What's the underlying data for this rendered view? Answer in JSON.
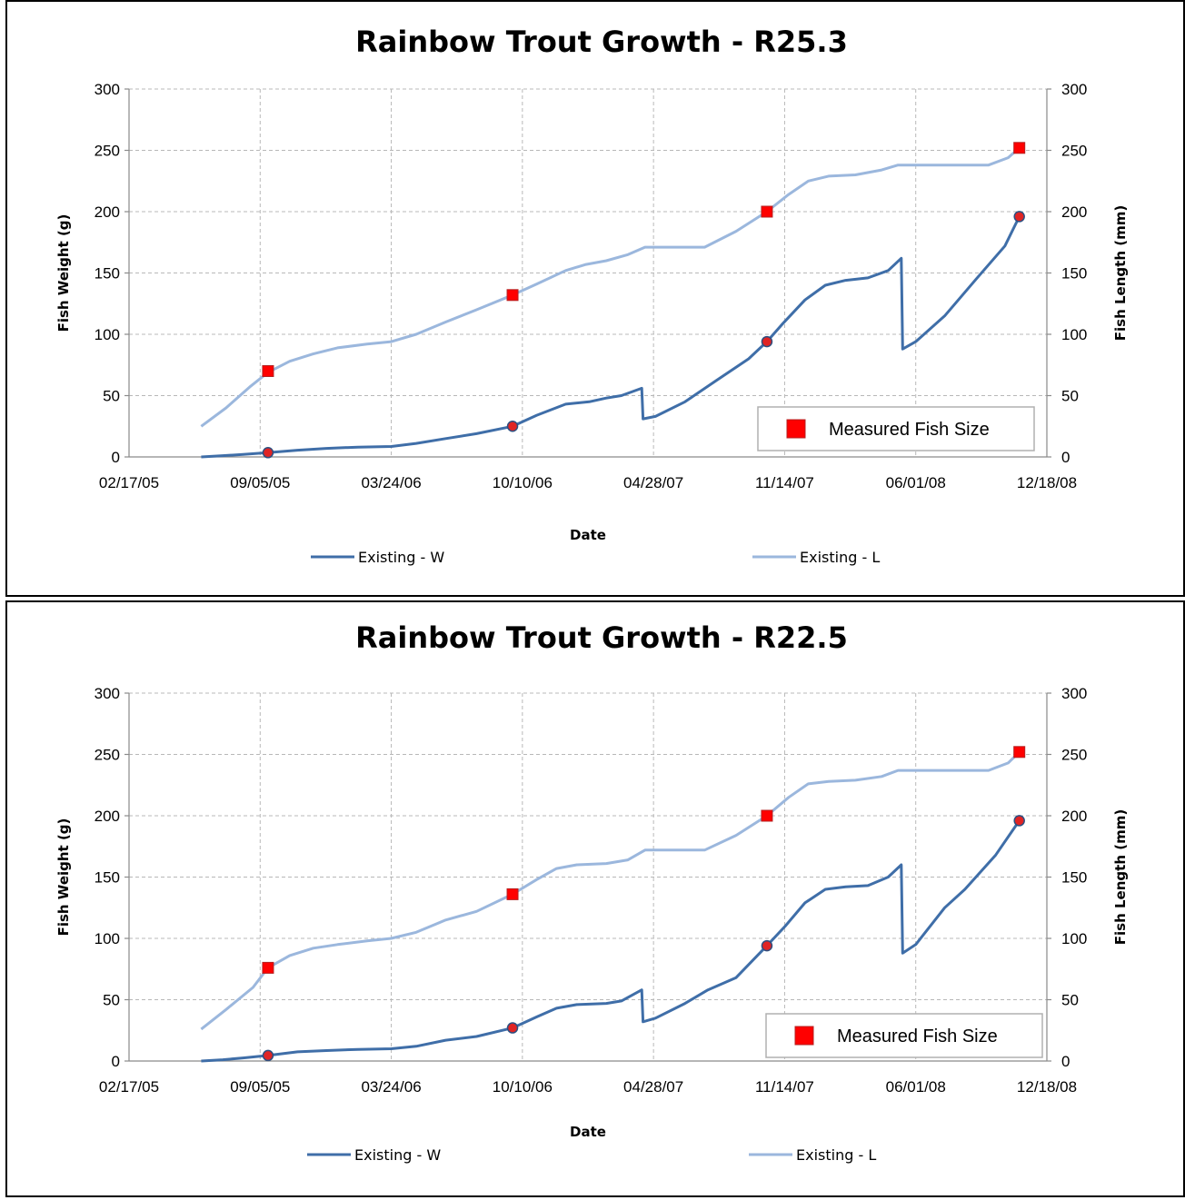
{
  "chart_data": [
    {
      "type": "line",
      "title": "Rainbow Trout Growth - R25.3",
      "xlabel": "Date",
      "ylabel_left": "Fish Weight (g)",
      "ylabel_right": "Fish Length (mm)",
      "x_ticks": [
        "02/17/05",
        "09/05/05",
        "03/24/06",
        "10/10/06",
        "04/28/07",
        "11/14/07",
        "06/01/08",
        "12/18/08"
      ],
      "x_range": [
        "2005-02-17",
        "2008-12-18"
      ],
      "y_ticks": [
        "0",
        "50",
        "100",
        "150",
        "200",
        "250",
        "300"
      ],
      "ylim_left": [
        0,
        300
      ],
      "ylim_right": [
        0,
        300
      ],
      "grid": true,
      "legend_position": "bottom",
      "inner_legend": "Measured Fish Size",
      "inner_legend_position": "bottom-right",
      "series": [
        {
          "name": "Existing - W",
          "color": "#3f6ea8",
          "axis": "left",
          "points": [
            [
              "2005-06-07",
              0
            ],
            [
              "2005-07-10",
              1
            ],
            [
              "2005-08-10",
              2
            ],
            [
              "2005-09-17",
              3.5
            ],
            [
              "2005-11-01",
              5.5
            ],
            [
              "2005-12-15",
              7
            ],
            [
              "2006-02-01",
              8
            ],
            [
              "2006-03-24",
              8.5
            ],
            [
              "2006-05-01",
              11
            ],
            [
              "2006-06-15",
              15
            ],
            [
              "2006-08-01",
              19
            ],
            [
              "2006-09-25",
              25
            ],
            [
              "2006-11-01",
              34
            ],
            [
              "2006-12-15",
              43
            ],
            [
              "2007-01-20",
              45
            ],
            [
              "2007-02-15",
              48
            ],
            [
              "2007-03-10",
              50
            ],
            [
              "2007-04-10",
              56
            ],
            [
              "2007-04-12",
              31
            ],
            [
              "2007-05-01",
              33
            ],
            [
              "2007-06-15",
              45
            ],
            [
              "2007-08-01",
              62
            ],
            [
              "2007-09-20",
              80
            ],
            [
              "2007-10-18",
              94
            ],
            [
              "2007-11-10",
              108
            ],
            [
              "2007-12-15",
              128
            ],
            [
              "2008-01-15",
              140
            ],
            [
              "2008-02-15",
              144
            ],
            [
              "2008-03-20",
              146
            ],
            [
              "2008-04-20",
              152
            ],
            [
              "2008-05-10",
              162
            ],
            [
              "2008-05-12",
              88
            ],
            [
              "2008-06-01",
              94
            ],
            [
              "2008-07-15",
              115
            ],
            [
              "2008-09-01",
              145
            ],
            [
              "2008-10-15",
              172
            ],
            [
              "2008-11-06",
              196
            ]
          ]
        },
        {
          "name": "Existing - L",
          "color": "#9bb7dd",
          "axis": "right",
          "points": [
            [
              "2005-06-07",
              25
            ],
            [
              "2005-07-15",
              40
            ],
            [
              "2005-08-20",
              57
            ],
            [
              "2005-09-17",
              69
            ],
            [
              "2005-10-20",
              78
            ],
            [
              "2005-11-25",
              84
            ],
            [
              "2006-01-01",
              89
            ],
            [
              "2006-02-15",
              92
            ],
            [
              "2006-03-24",
              94
            ],
            [
              "2006-05-01",
              100
            ],
            [
              "2006-06-15",
              110
            ],
            [
              "2006-08-01",
              120
            ],
            [
              "2006-09-25",
              132
            ],
            [
              "2006-11-01",
              141
            ],
            [
              "2006-12-15",
              152
            ],
            [
              "2007-01-15",
              157
            ],
            [
              "2007-02-15",
              160
            ],
            [
              "2007-03-20",
              165
            ],
            [
              "2007-04-15",
              171
            ],
            [
              "2007-06-01",
              171
            ],
            [
              "2007-07-15",
              171
            ],
            [
              "2007-09-01",
              184
            ],
            [
              "2007-10-18",
              200
            ],
            [
              "2007-11-20",
              214
            ],
            [
              "2007-12-20",
              225
            ],
            [
              "2008-01-20",
              229
            ],
            [
              "2008-03-01",
              230
            ],
            [
              "2008-04-10",
              234
            ],
            [
              "2008-05-05",
              238
            ],
            [
              "2008-06-15",
              238
            ],
            [
              "2008-08-01",
              238
            ],
            [
              "2008-09-20",
              238
            ],
            [
              "2008-10-20",
              244
            ],
            [
              "2008-11-06",
              252
            ]
          ]
        },
        {
          "name": "Measured Fish Size",
          "marker": "square",
          "color": "#ff0000",
          "axis": "right",
          "points": [
            [
              "2005-09-17",
              70
            ],
            [
              "2006-09-25",
              132
            ],
            [
              "2007-10-18",
              200
            ],
            [
              "2008-11-06",
              252
            ]
          ]
        },
        {
          "marker": "circle",
          "color": "#e02424",
          "axis": "left",
          "points": [
            [
              "2005-09-17",
              3.5
            ],
            [
              "2006-09-25",
              25
            ],
            [
              "2007-10-18",
              94
            ],
            [
              "2008-11-06",
              196
            ]
          ]
        }
      ]
    },
    {
      "type": "line",
      "title": "Rainbow Trout Growth - R22.5",
      "xlabel": "Date",
      "ylabel_left": "Fish Weight (g)",
      "ylabel_right": "Fish Length (mm)",
      "x_ticks": [
        "02/17/05",
        "09/05/05",
        "03/24/06",
        "10/10/06",
        "04/28/07",
        "11/14/07",
        "06/01/08",
        "12/18/08"
      ],
      "x_range": [
        "2005-02-17",
        "2008-12-18"
      ],
      "y_ticks": [
        "0",
        "50",
        "100",
        "150",
        "200",
        "250",
        "300"
      ],
      "ylim_left": [
        0,
        300
      ],
      "ylim_right": [
        0,
        300
      ],
      "grid": true,
      "legend_position": "bottom",
      "inner_legend": "Measured Fish Size",
      "inner_legend_position": "bottom-right",
      "series": [
        {
          "name": "Existing - W",
          "color": "#3f6ea8",
          "axis": "left",
          "points": [
            [
              "2005-06-07",
              0
            ],
            [
              "2005-07-10",
              1
            ],
            [
              "2005-08-10",
              2.5
            ],
            [
              "2005-09-17",
              4.5
            ],
            [
              "2005-11-01",
              7.5
            ],
            [
              "2005-12-15",
              8.5
            ],
            [
              "2006-02-01",
              9.5
            ],
            [
              "2006-03-24",
              10
            ],
            [
              "2006-05-01",
              12
            ],
            [
              "2006-06-15",
              17
            ],
            [
              "2006-08-01",
              20
            ],
            [
              "2006-09-25",
              27
            ],
            [
              "2006-11-01",
              36
            ],
            [
              "2006-12-01",
              43
            ],
            [
              "2007-01-01",
              46
            ],
            [
              "2007-02-15",
              47
            ],
            [
              "2007-03-10",
              49
            ],
            [
              "2007-04-10",
              58
            ],
            [
              "2007-04-12",
              32
            ],
            [
              "2007-05-01",
              35
            ],
            [
              "2007-06-15",
              47
            ],
            [
              "2007-07-20",
              58
            ],
            [
              "2007-09-01",
              68
            ],
            [
              "2007-10-18",
              94
            ],
            [
              "2007-11-15",
              110
            ],
            [
              "2007-12-15",
              129
            ],
            [
              "2008-01-15",
              140
            ],
            [
              "2008-02-15",
              142
            ],
            [
              "2008-03-20",
              143
            ],
            [
              "2008-04-20",
              150
            ],
            [
              "2008-05-10",
              160
            ],
            [
              "2008-05-12",
              88
            ],
            [
              "2008-06-01",
              95
            ],
            [
              "2008-07-15",
              125
            ],
            [
              "2008-08-15",
              140
            ],
            [
              "2008-10-01",
              168
            ],
            [
              "2008-11-06",
              196
            ]
          ]
        },
        {
          "name": "Existing - L",
          "color": "#9bb7dd",
          "axis": "right",
          "points": [
            [
              "2005-06-07",
              26
            ],
            [
              "2005-07-15",
              42
            ],
            [
              "2005-08-25",
              60
            ],
            [
              "2005-09-17",
              76
            ],
            [
              "2005-10-20",
              86
            ],
            [
              "2005-11-25",
              92
            ],
            [
              "2006-01-01",
              95
            ],
            [
              "2006-02-15",
              98
            ],
            [
              "2006-03-24",
              100
            ],
            [
              "2006-05-01",
              105
            ],
            [
              "2006-06-15",
              115
            ],
            [
              "2006-08-01",
              122
            ],
            [
              "2006-09-25",
              136
            ],
            [
              "2006-11-01",
              148
            ],
            [
              "2006-12-01",
              157
            ],
            [
              "2007-01-01",
              160
            ],
            [
              "2007-02-15",
              161
            ],
            [
              "2007-03-20",
              164
            ],
            [
              "2007-04-15",
              172
            ],
            [
              "2007-06-01",
              172
            ],
            [
              "2007-07-15",
              172
            ],
            [
              "2007-09-01",
              184
            ],
            [
              "2007-10-18",
              200
            ],
            [
              "2007-11-20",
              215
            ],
            [
              "2007-12-20",
              226
            ],
            [
              "2008-01-20",
              228
            ],
            [
              "2008-03-01",
              229
            ],
            [
              "2008-04-10",
              232
            ],
            [
              "2008-05-05",
              237
            ],
            [
              "2008-06-15",
              237
            ],
            [
              "2008-08-01",
              237
            ],
            [
              "2008-09-20",
              237
            ],
            [
              "2008-10-20",
              243
            ],
            [
              "2008-11-06",
              252
            ]
          ]
        },
        {
          "name": "Measured Fish Size",
          "marker": "square",
          "color": "#ff0000",
          "axis": "right",
          "points": [
            [
              "2005-09-17",
              76
            ],
            [
              "2006-09-25",
              136
            ],
            [
              "2007-10-18",
              200
            ],
            [
              "2008-11-06",
              252
            ]
          ]
        },
        {
          "marker": "circle",
          "color": "#e02424",
          "axis": "left",
          "points": [
            [
              "2005-09-17",
              4.5
            ],
            [
              "2006-09-25",
              27
            ],
            [
              "2007-10-18",
              94
            ],
            [
              "2008-11-06",
              196
            ]
          ]
        }
      ]
    }
  ]
}
